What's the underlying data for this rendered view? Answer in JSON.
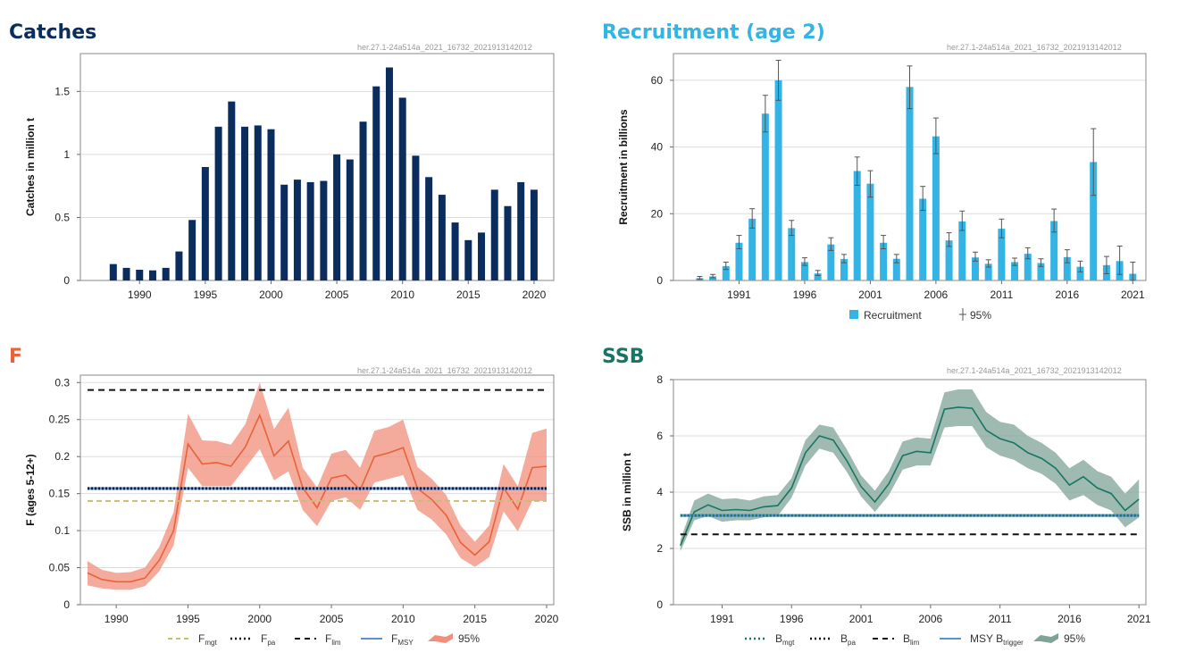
{
  "colors": {
    "catches": "#0b2d5e",
    "recruitment": "#33b4e4",
    "f": "#e8623a",
    "f_band": "#f08f7b",
    "ssb": "#187564",
    "ssb_band": "#7fa396",
    "fmgt": "#c8bc78",
    "black": "#111111",
    "msy_blue": "#5b8fd9",
    "grid": "#dddddd"
  },
  "chart_data": [
    {
      "id": "catches",
      "type": "bar",
      "title": "Catches",
      "stock_id": "her.27.1-24a514a_2021_16732_2021913142012",
      "ylabel": "Catches in million t",
      "xlim": [
        1985.5,
        2021.5
      ],
      "ylim": [
        0,
        1.8
      ],
      "yticks": [
        0,
        0.5,
        1,
        1.5
      ],
      "ytick_labels": [
        "0",
        "0.5",
        "1",
        "1.5"
      ],
      "xticks": [
        1990,
        1995,
        2000,
        2005,
        2010,
        2015,
        2020
      ],
      "xtick_labels": [
        "1990",
        "1995",
        "2000",
        "2005",
        "2010",
        "2015",
        "2020"
      ],
      "x": [
        1988,
        1989,
        1990,
        1991,
        1992,
        1993,
        1994,
        1995,
        1996,
        1997,
        1998,
        1999,
        2000,
        2001,
        2002,
        2003,
        2004,
        2005,
        2006,
        2007,
        2008,
        2009,
        2010,
        2011,
        2012,
        2013,
        2014,
        2015,
        2016,
        2017,
        2018,
        2019,
        2020
      ],
      "values": [
        0.13,
        0.1,
        0.085,
        0.08,
        0.1,
        0.23,
        0.48,
        0.9,
        1.22,
        1.42,
        1.22,
        1.23,
        1.2,
        0.76,
        0.8,
        0.78,
        0.79,
        1.0,
        0.96,
        1.26,
        1.54,
        1.69,
        1.45,
        0.99,
        0.82,
        0.68,
        0.46,
        0.32,
        0.38,
        0.72,
        0.59,
        0.78,
        0.72
      ]
    },
    {
      "id": "recruitment",
      "type": "bar",
      "title": "Recruitment (age 2)",
      "stock_id": "her.27.1-24a514a_2021_16732_2021913142012",
      "ylabel": "Recruitment in billions",
      "xlim": [
        1986,
        2022
      ],
      "ylim": [
        0,
        68
      ],
      "yticks": [
        0,
        20,
        40,
        60
      ],
      "ytick_labels": [
        "0",
        "20",
        "40",
        "60"
      ],
      "xticks": [
        1991,
        1996,
        2001,
        2006,
        2011,
        2016,
        2021
      ],
      "xtick_labels": [
        "1991",
        "1996",
        "2001",
        "2006",
        "2011",
        "2016",
        "2021"
      ],
      "legend": {
        "bar_label": "Recruitment",
        "ci_label": "95%",
        "placement": "bottom"
      },
      "x": [
        1988,
        1989,
        1990,
        1991,
        1992,
        1993,
        1994,
        1995,
        1996,
        1997,
        1998,
        1999,
        2000,
        2001,
        2002,
        2003,
        2004,
        2005,
        2006,
        2007,
        2008,
        2009,
        2010,
        2011,
        2012,
        2013,
        2014,
        2015,
        2016,
        2017,
        2018,
        2019,
        2020,
        2021
      ],
      "values": [
        0.7,
        1.2,
        4.3,
        11.3,
        18.5,
        50,
        60,
        15.7,
        5.5,
        2.1,
        10.8,
        6.4,
        32.8,
        29,
        11.3,
        6.5,
        58,
        24.5,
        43.2,
        12,
        17.7,
        6.9,
        5,
        15.5,
        5.5,
        8,
        5.2,
        17.8,
        7,
        4.1,
        35.5,
        4.6,
        5.8,
        2
      ],
      "low": [
        0.3,
        0.8,
        3.3,
        9.5,
        15.7,
        44.5,
        54,
        13.5,
        4.5,
        1.5,
        9,
        5.3,
        28.5,
        25,
        9.5,
        5.3,
        51.5,
        21,
        38,
        10.2,
        15,
        5.8,
        4,
        12.8,
        4.5,
        6.5,
        4.2,
        14.5,
        5.3,
        2.6,
        25.5,
        2,
        1.8,
        0
      ],
      "high": [
        1.2,
        1.8,
        5.5,
        13.5,
        21.5,
        55.5,
        66,
        18,
        6.8,
        3,
        12.8,
        7.8,
        37,
        32.9,
        13.5,
        7.8,
        64.3,
        28.2,
        48.7,
        14.3,
        20.8,
        8.5,
        6.2,
        18.4,
        6.7,
        9.8,
        6.5,
        21.4,
        9.2,
        5.8,
        45.5,
        7.2,
        10.3,
        5.5
      ]
    },
    {
      "id": "f",
      "type": "line",
      "title": "F",
      "stock_id": "her.27.1-24a514a_2021_16732_2021913142012",
      "ylabel": "F (ages 5-12+)",
      "xlim": [
        1987.5,
        2020.5
      ],
      "ylim": [
        0,
        0.31
      ],
      "yticks": [
        0,
        0.05,
        0.1,
        0.15,
        0.2,
        0.25,
        0.3
      ],
      "ytick_labels": [
        "0",
        "0.05",
        "0.1",
        "0.15",
        "0.2",
        "0.25",
        "0.3"
      ],
      "xticks": [
        1990,
        1995,
        2000,
        2005,
        2010,
        2015,
        2020
      ],
      "xtick_labels": [
        "1990",
        "1995",
        "2000",
        "2005",
        "2010",
        "2015",
        "2020"
      ],
      "x": [
        1988,
        1989,
        1990,
        1991,
        1992,
        1993,
        1994,
        1995,
        1996,
        1997,
        1998,
        1999,
        2000,
        2001,
        2002,
        2003,
        2004,
        2005,
        2006,
        2007,
        2008,
        2009,
        2010,
        2011,
        2012,
        2013,
        2014,
        2015,
        2016,
        2017,
        2018,
        2019,
        2020
      ],
      "values": [
        0.043,
        0.034,
        0.031,
        0.031,
        0.036,
        0.06,
        0.1,
        0.217,
        0.19,
        0.192,
        0.187,
        0.213,
        0.256,
        0.201,
        0.221,
        0.158,
        0.131,
        0.171,
        0.175,
        0.155,
        0.2,
        0.205,
        0.212,
        0.157,
        0.142,
        0.121,
        0.084,
        0.067,
        0.085,
        0.158,
        0.129,
        0.185,
        0.187
      ],
      "low": [
        0.026,
        0.022,
        0.02,
        0.02,
        0.025,
        0.045,
        0.08,
        0.185,
        0.16,
        0.16,
        0.16,
        0.185,
        0.21,
        0.168,
        0.18,
        0.128,
        0.106,
        0.14,
        0.145,
        0.128,
        0.165,
        0.17,
        0.175,
        0.128,
        0.115,
        0.095,
        0.063,
        0.051,
        0.064,
        0.126,
        0.099,
        0.14,
        0.14
      ],
      "high": [
        0.059,
        0.047,
        0.043,
        0.044,
        0.05,
        0.078,
        0.125,
        0.258,
        0.222,
        0.221,
        0.216,
        0.244,
        0.3,
        0.237,
        0.266,
        0.185,
        0.158,
        0.204,
        0.209,
        0.185,
        0.235,
        0.24,
        0.25,
        0.186,
        0.17,
        0.148,
        0.107,
        0.085,
        0.107,
        0.19,
        0.16,
        0.232,
        0.238
      ],
      "reference_lines": {
        "Fmgt": 0.14,
        "Fpa": 0.157,
        "Flim": 0.29,
        "FMSY": 0.157
      },
      "legend": [
        {
          "main": "F",
          "sub": "mgt",
          "style": "dashed-fmgt"
        },
        {
          "main": "F",
          "sub": "pa",
          "style": "dotted-black"
        },
        {
          "main": "F",
          "sub": "lim",
          "style": "dashed-black"
        },
        {
          "main": "F",
          "sub": "MSY",
          "style": "solid-blue"
        },
        {
          "main": "95%",
          "sub": "",
          "style": "band"
        }
      ]
    },
    {
      "id": "ssb",
      "type": "line",
      "title": "SSB",
      "stock_id": "her.27.1-24a514a_2021_16732_2021913142012",
      "ylabel": "SSB in million t",
      "xlim": [
        1987.5,
        2021.5
      ],
      "ylim": [
        0,
        8
      ],
      "yticks": [
        0,
        2,
        4,
        6,
        8
      ],
      "ytick_labels": [
        "0",
        "2",
        "4",
        "6",
        "8"
      ],
      "xticks": [
        1991,
        1996,
        2001,
        2006,
        2011,
        2016,
        2021
      ],
      "xtick_labels": [
        "1991",
        "1996",
        "2001",
        "2006",
        "2011",
        "2016",
        "2021"
      ],
      "x": [
        1988,
        1989,
        1990,
        1991,
        1992,
        1993,
        1994,
        1995,
        1996,
        1997,
        1998,
        1999,
        2000,
        2001,
        2002,
        2003,
        2004,
        2005,
        2006,
        2007,
        2008,
        2009,
        2010,
        2011,
        2012,
        2013,
        2014,
        2015,
        2016,
        2017,
        2018,
        2019,
        2020,
        2021
      ],
      "values": [
        2.1,
        3.3,
        3.55,
        3.35,
        3.38,
        3.35,
        3.48,
        3.52,
        4.15,
        5.4,
        6,
        5.85,
        5.1,
        4.2,
        3.65,
        4.3,
        5.3,
        5.45,
        5.4,
        6.95,
        7.02,
        6.98,
        6.2,
        5.9,
        5.75,
        5.4,
        5.2,
        4.85,
        4.25,
        4.55,
        4.15,
        3.95,
        3.35,
        3.75
      ],
      "low": [
        1.9,
        3.0,
        3.15,
        2.95,
        3.0,
        3.0,
        3.1,
        3.15,
        3.8,
        4.95,
        5.55,
        5.4,
        4.7,
        3.85,
        3.3,
        3.9,
        4.8,
        4.95,
        4.95,
        6.3,
        6.35,
        6.35,
        5.6,
        5.3,
        5.15,
        4.85,
        4.65,
        4.3,
        3.7,
        3.9,
        3.55,
        3.35,
        2.75,
        3.1
      ],
      "high": [
        2.3,
        3.7,
        3.95,
        3.75,
        3.78,
        3.7,
        3.85,
        3.9,
        4.5,
        5.85,
        6.4,
        6.3,
        5.5,
        4.6,
        4.05,
        4.75,
        5.8,
        5.95,
        5.9,
        7.55,
        7.65,
        7.65,
        6.85,
        6.5,
        6.4,
        6.0,
        5.75,
        5.4,
        4.85,
        5.15,
        4.75,
        4.55,
        3.95,
        4.45
      ],
      "reference_lines": {
        "Bmgt": 3.17,
        "Bpa": 3.17,
        "Blim": 2.5,
        "MSYBtrigger": 3.17
      },
      "legend": [
        {
          "main": "B",
          "sub": "mgt",
          "style": "dotted-green"
        },
        {
          "main": "B",
          "sub": "pa",
          "style": "dotted-black"
        },
        {
          "main": "B",
          "sub": "lim",
          "style": "dashed-black"
        },
        {
          "main": "MSY B",
          "sub": "trigger",
          "style": "solid-blue"
        },
        {
          "main": "95%",
          "sub": "",
          "style": "band"
        }
      ]
    }
  ]
}
